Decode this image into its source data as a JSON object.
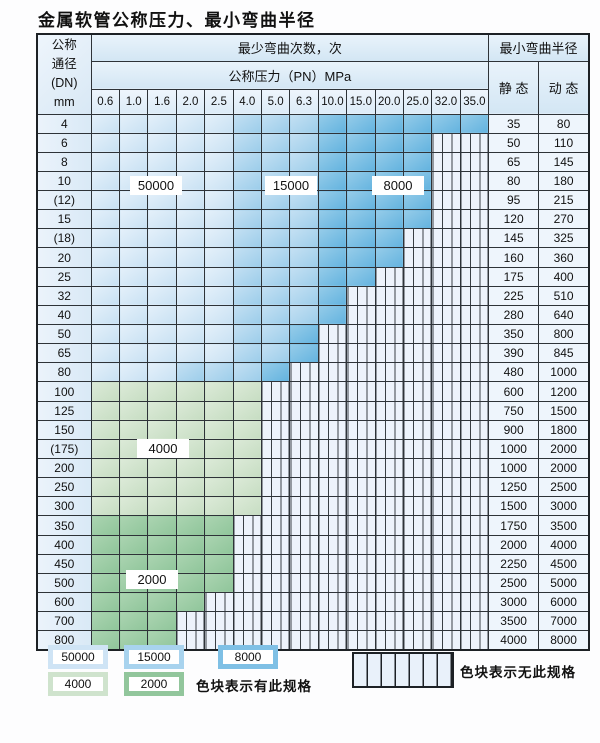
{
  "title": "金属软管公称压力、最小弯曲半径",
  "table": {
    "header": {
      "dn_lines": [
        "公称",
        "通径",
        "(DN)",
        "mm"
      ],
      "bend_cycles": "最少弯曲次数，次",
      "pressure": "公称压力（PN）MPa",
      "min_radius": "最小弯曲半径",
      "static": "静 态",
      "dynamic": "动 态",
      "pressure_columns": [
        "0.6",
        "1.0",
        "1.6",
        "2.0",
        "2.5",
        "4.0",
        "5.0",
        "6.3",
        "10.0",
        "15.0",
        "20.0",
        "25.0",
        "32.0",
        "35.0"
      ]
    },
    "cell_codes": {
      "1": "50000",
      "2": "15000",
      "3": "8000",
      "4": "4000",
      "5": "2000",
      "x": "无此规格"
    },
    "rows": [
      {
        "dn": "4",
        "cells": "11111222333333",
        "static": "35",
        "dynamic": "80"
      },
      {
        "dn": "6",
        "cells": "111112223333xx",
        "static": "50",
        "dynamic": "110"
      },
      {
        "dn": "8",
        "cells": "111112223333xx",
        "static": "65",
        "dynamic": "145"
      },
      {
        "dn": "10",
        "cells": "111112223333xx",
        "static": "80",
        "dynamic": "180"
      },
      {
        "dn": "(12)",
        "cells": "111112223333xx",
        "static": "95",
        "dynamic": "215"
      },
      {
        "dn": "15",
        "cells": "111112223333xx",
        "static": "120",
        "dynamic": "270"
      },
      {
        "dn": "(18)",
        "cells": "11111222333xxx",
        "static": "145",
        "dynamic": "325"
      },
      {
        "dn": "20",
        "cells": "11111222333xxx",
        "static": "160",
        "dynamic": "360"
      },
      {
        "dn": "25",
        "cells": "1111122233xxxx",
        "static": "175",
        "dynamic": "400"
      },
      {
        "dn": "32",
        "cells": "111112223xxxxx",
        "static": "225",
        "dynamic": "510"
      },
      {
        "dn": "40",
        "cells": "111112223xxxxx",
        "static": "280",
        "dynamic": "640"
      },
      {
        "dn": "50",
        "cells": "11111223xxxxxx",
        "static": "350",
        "dynamic": "800"
      },
      {
        "dn": "65",
        "cells": "11111223xxxxxx",
        "static": "390",
        "dynamic": "845"
      },
      {
        "dn": "80",
        "cells": "1112223xxxxxxx",
        "static": "480",
        "dynamic": "1000"
      },
      {
        "dn": "100",
        "cells": "444444xxxxxxxx",
        "static": "600",
        "dynamic": "1200"
      },
      {
        "dn": "125",
        "cells": "444444xxxxxxxx",
        "static": "750",
        "dynamic": "1500"
      },
      {
        "dn": "150",
        "cells": "444444xxxxxxxx",
        "static": "900",
        "dynamic": "1800"
      },
      {
        "dn": "(175)",
        "cells": "444444xxxxxxxx",
        "static": "1000",
        "dynamic": "2000"
      },
      {
        "dn": "200",
        "cells": "444444xxxxxxxx",
        "static": "1000",
        "dynamic": "2000"
      },
      {
        "dn": "250",
        "cells": "444444xxxxxxxx",
        "static": "1250",
        "dynamic": "2500"
      },
      {
        "dn": "300",
        "cells": "444444xxxxxxxx",
        "static": "1500",
        "dynamic": "3000"
      },
      {
        "dn": "350",
        "cells": "55555xxxxxxxxx",
        "static": "1750",
        "dynamic": "3500"
      },
      {
        "dn": "400",
        "cells": "55555xxxxxxxxx",
        "static": "2000",
        "dynamic": "4000"
      },
      {
        "dn": "450",
        "cells": "55555xxxxxxxxx",
        "static": "2250",
        "dynamic": "4500"
      },
      {
        "dn": "500",
        "cells": "55555xxxxxxxxx",
        "static": "2500",
        "dynamic": "5000"
      },
      {
        "dn": "600",
        "cells": "5555xxxxxxxxxx",
        "static": "3000",
        "dynamic": "6000"
      },
      {
        "dn": "700",
        "cells": "555xxxxxxxxxxx",
        "static": "3500",
        "dynamic": "7000"
      },
      {
        "dn": "800",
        "cells": "555xxxxxxxxxxx",
        "static": "4000",
        "dynamic": "8000"
      }
    ],
    "region_labels": [
      {
        "text": "50000"
      },
      {
        "text": "15000"
      },
      {
        "text": "8000"
      },
      {
        "text": "4000"
      },
      {
        "text": "2000"
      }
    ]
  },
  "legend": {
    "items": [
      {
        "label": "50000",
        "color": "#cfe4f5"
      },
      {
        "label": "15000",
        "color": "#a8d3ee"
      },
      {
        "label": "8000",
        "color": "#7fc0e5"
      },
      {
        "label": "4000",
        "color": "#cfe3cd"
      },
      {
        "label": "2000",
        "color": "#92c69c"
      }
    ],
    "has_spec_text": "色块表示有此规格",
    "no_spec_text": "色块表示无此规格",
    "no_spec_color": "#edf3fb"
  }
}
